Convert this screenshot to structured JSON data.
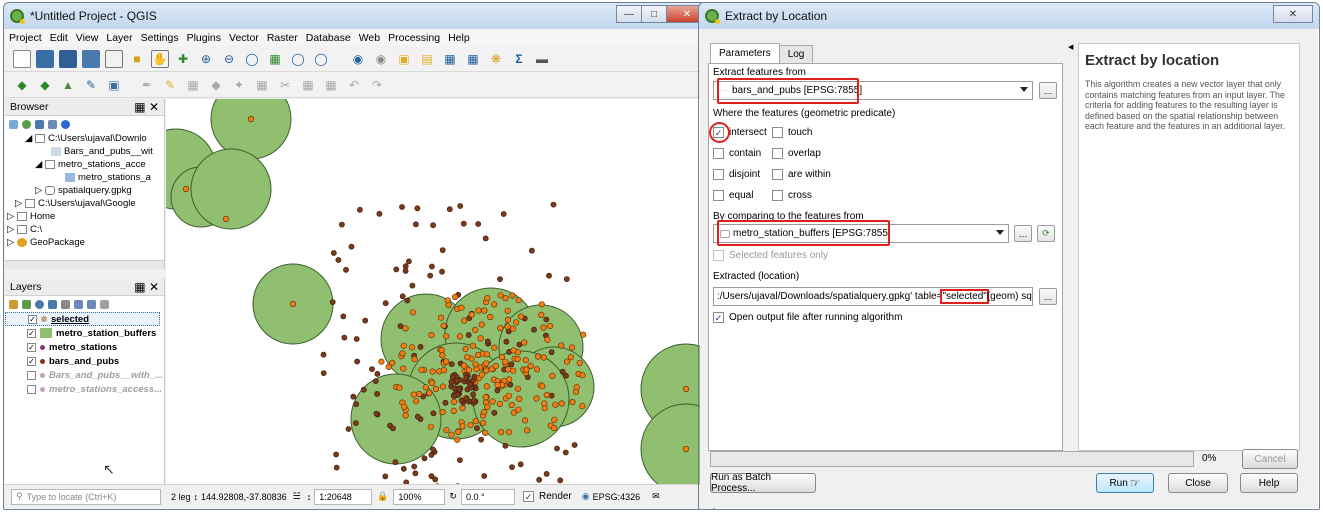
{
  "qgis": {
    "title": "*Untitled Project - QGIS",
    "menu": [
      "Project",
      "Edit",
      "View",
      "Layer",
      "Settings",
      "Plugins",
      "Vector",
      "Raster",
      "Database",
      "Web",
      "Processing",
      "Help"
    ],
    "browser": {
      "title": "Browser",
      "items": [
        "C:\\Users\\ujaval\\Downlo",
        "Bars_and_pubs__wit",
        "metro_stations_acce",
        "metro_stations_a",
        "spatialquery.gpkg",
        "C:\\Users\\ujaval\\Google",
        "Home",
        "C:\\",
        "GeoPackage"
      ]
    },
    "layers": {
      "title": "Layers",
      "items": [
        {
          "name": "selected",
          "checked": true,
          "active": true
        },
        {
          "name": "metro_station_buffers",
          "checked": true
        },
        {
          "name": "metro_stations",
          "checked": true
        },
        {
          "name": "bars_and_pubs",
          "checked": true
        },
        {
          "name": "Bars_and_pubs__with_...",
          "checked": false
        },
        {
          "name": "metro_stations_access...",
          "checked": false
        }
      ]
    },
    "status": {
      "locate_placeholder": "Type to locate (Ctrl+K)",
      "legend_count": "2 leg",
      "coordinate": "144.92808,-37.80836",
      "scale": "1:20648",
      "magnifier": "100%",
      "rotation": "0.0 °",
      "render": "Render",
      "crs": "EPSG:4326"
    }
  },
  "dialog": {
    "title": "Extract by Location",
    "tabs": [
      "Parameters",
      "Log"
    ],
    "extract_from_label": "Extract features from",
    "extract_from_value": "bars_and_pubs [EPSG:7855]",
    "predicate_label": "Where the features (geometric predicate)",
    "predicates": [
      {
        "label": "intersect",
        "checked": true
      },
      {
        "label": "touch",
        "checked": false
      },
      {
        "label": "contain",
        "checked": false
      },
      {
        "label": "overlap",
        "checked": false
      },
      {
        "label": "disjoint",
        "checked": false
      },
      {
        "label": "are within",
        "checked": false
      },
      {
        "label": "equal",
        "checked": false
      },
      {
        "label": "cross",
        "checked": false
      }
    ],
    "compare_label": "By comparing to the features from",
    "compare_value": "metro_station_buffers [EPSG:7855]",
    "selected_only": "Selected features only",
    "extracted_label": "Extracted (location)",
    "extracted_value_prefix": ":/Users/ujaval/Downloads/spatialquery.gpkg' table=",
    "extracted_value_table": "\"selected\"",
    "extracted_value_suffix": " (geom) sql=",
    "open_output": "Open output file after running algorithm",
    "help_title": "Extract by location",
    "help_text": "This algorithm creates a new vector layer that only contains matching features from an input layer. The criteria for adding features to the resulting layer is defined based on the spatial relationship between each feature and the features in an additional layer.",
    "progress": "0%",
    "progress_value": 0,
    "buttons": {
      "cancel": "Cancel",
      "batch": "Run as Batch Process...",
      "run": "Run",
      "close": "Close",
      "help": "Help"
    }
  },
  "colors": {
    "buffer_fill": "#8fbf6f",
    "buffer_stroke": "#3d5e2f",
    "station": "#f07d12",
    "pub": "#7a3a1c",
    "highlight": "#e0201b"
  }
}
